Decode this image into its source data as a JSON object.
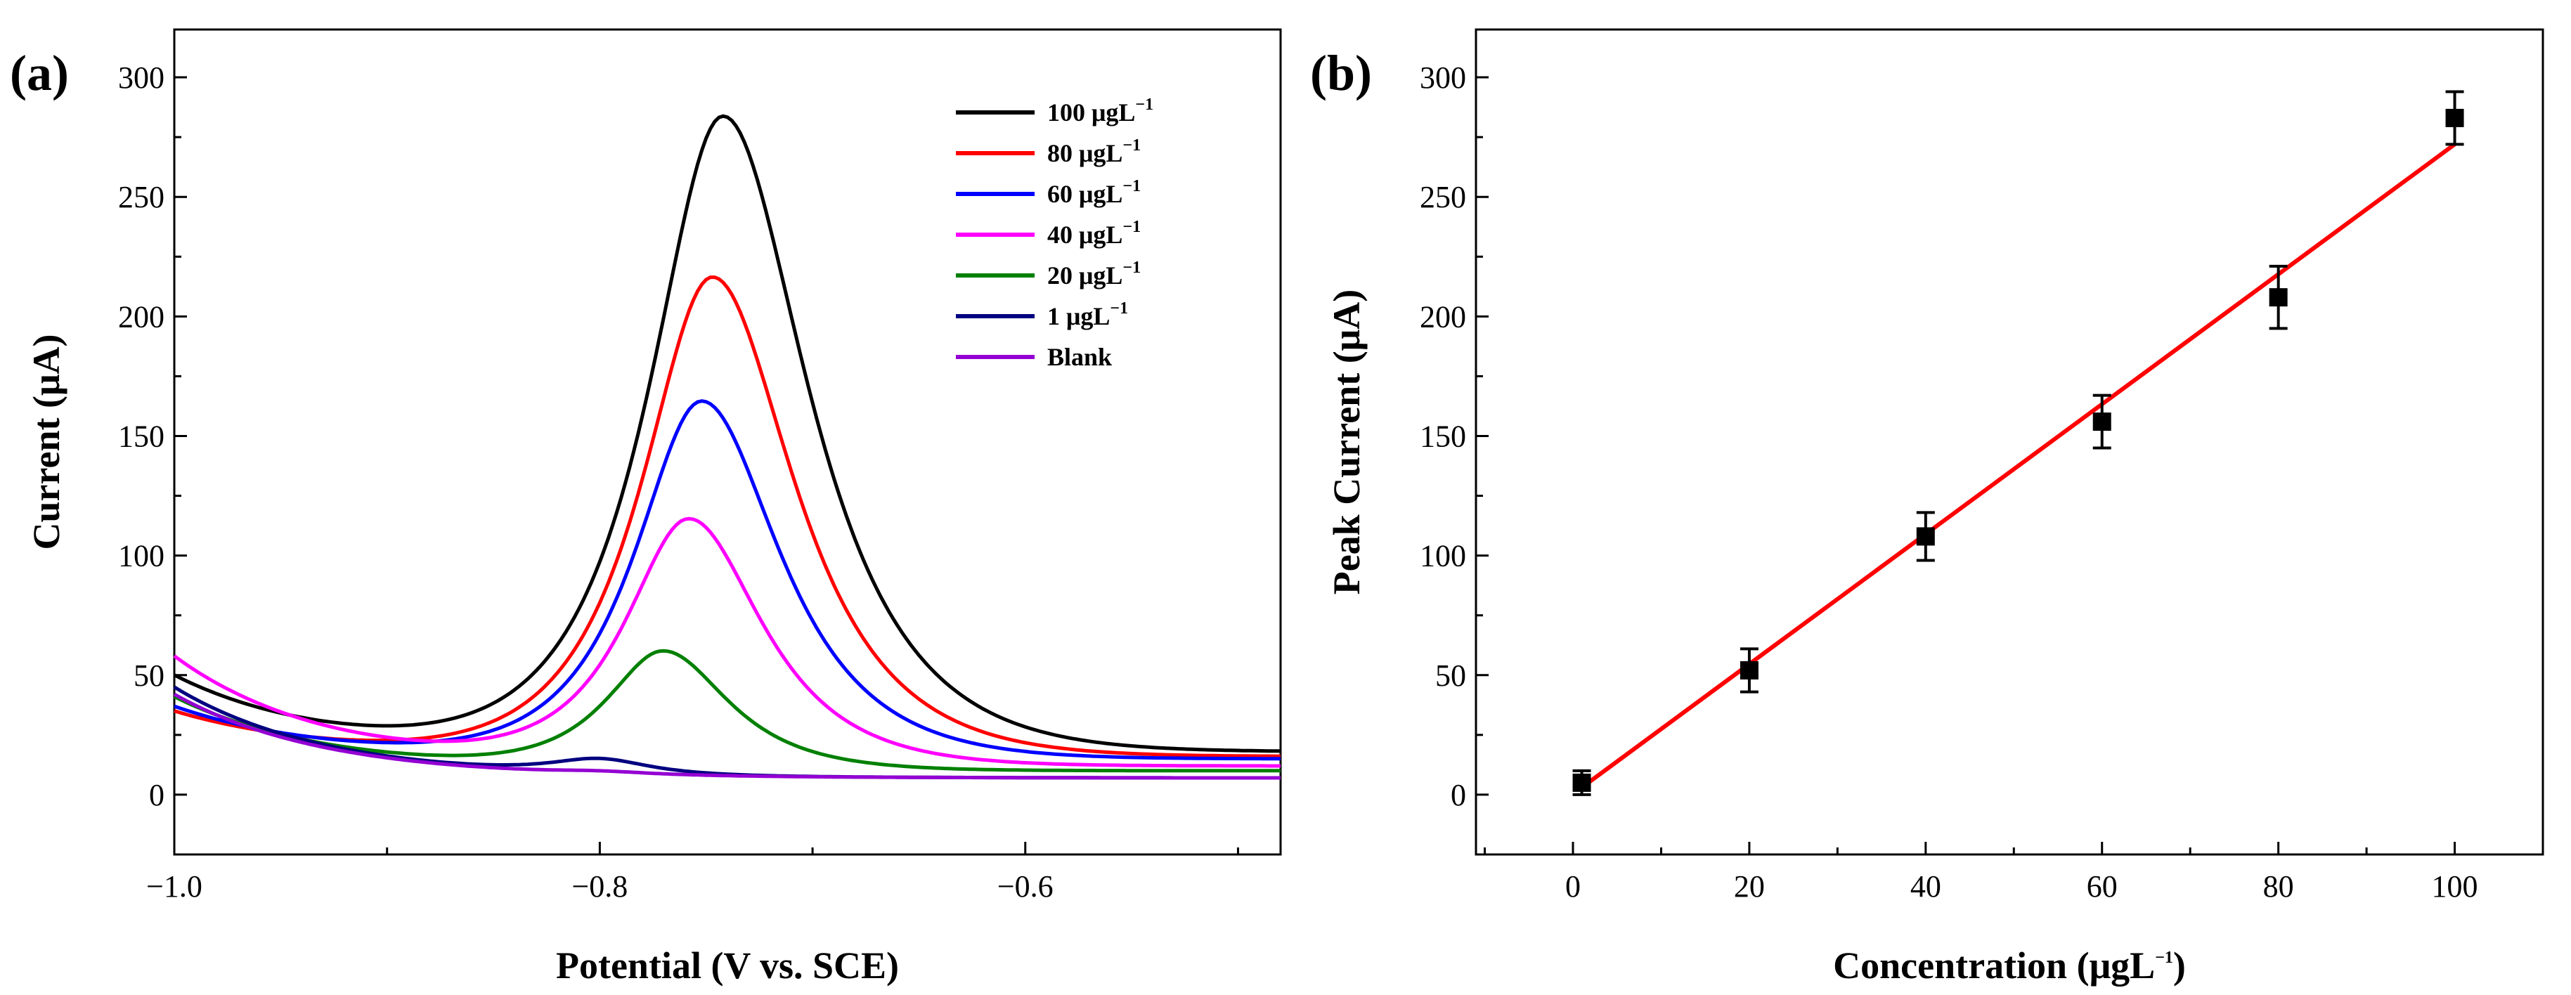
{
  "chart_data": [
    {
      "panel_label": "(a)",
      "type": "line",
      "xlabel": "Potential (V vs. SCE)",
      "ylabel": "Current (μA)",
      "xlim": [
        -1.0,
        -0.48
      ],
      "ylim": [
        -25,
        320
      ],
      "xticks": [
        -1.0,
        -0.8,
        -0.6
      ],
      "xtick_labels": [
        "−1.0",
        "−0.8",
        "−0.6"
      ],
      "yticks": [
        0,
        50,
        100,
        150,
        200,
        250,
        300
      ],
      "ytick_labels": [
        "0",
        "50",
        "100",
        "150",
        "200",
        "250",
        "300"
      ],
      "legend_position": "top-right",
      "series": [
        {
          "name": "100 μgL",
          "sup": "−1",
          "color": "#000000",
          "peak_x": -0.742,
          "peak_y": 283,
          "start_y": 50,
          "baseline_end": 18,
          "width_left": 0.045,
          "width_right": 0.052
        },
        {
          "name": " 80 μgL",
          "sup": "−1",
          "color": "#ff0000",
          "peak_x": -0.747,
          "peak_y": 216,
          "start_y": 35,
          "baseline_end": 16,
          "width_left": 0.043,
          "width_right": 0.05
        },
        {
          "name": " 60 μgL",
          "sup": "−1",
          "color": "#0000ff",
          "peak_x": -0.752,
          "peak_y": 164,
          "start_y": 37,
          "baseline_end": 15,
          "width_left": 0.041,
          "width_right": 0.048
        },
        {
          "name": " 40 μgL",
          "sup": "−1",
          "color": "#ff00ff",
          "peak_x": -0.758,
          "peak_y": 114,
          "start_y": 58,
          "baseline_end": 12,
          "width_left": 0.039,
          "width_right": 0.045
        },
        {
          "name": " 20 μgL",
          "sup": "−1",
          "color": "#008000",
          "peak_x": -0.77,
          "peak_y": 59,
          "start_y": 41,
          "baseline_end": 10,
          "width_left": 0.035,
          "width_right": 0.04
        },
        {
          "name": " 1  μgL",
          "sup": "−1",
          "color": "#000080",
          "peak_x": -0.8,
          "peak_y": 13,
          "start_y": 45,
          "baseline_end": 7,
          "width_left": 0.03,
          "width_right": 0.03
        },
        {
          "name": "  Blank",
          "sup": "",
          "color": "#9400d3",
          "peak_x": -0.8,
          "peak_y": 8,
          "start_y": 42,
          "baseline_end": 7,
          "width_left": 0.03,
          "width_right": 0.03
        }
      ]
    },
    {
      "panel_label": "(b)",
      "type": "scatter",
      "xlabel": "Concentration (μgL",
      "xlabel_sup": "−1",
      "xlabel_tail": ")",
      "ylabel": "Peak Current (μA)",
      "xlim": [
        -11,
        110
      ],
      "ylim": [
        -25,
        320
      ],
      "xticks": [
        0,
        20,
        40,
        60,
        80,
        100
      ],
      "xtick_labels": [
        "0",
        "20",
        "40",
        "60",
        "80",
        "100"
      ],
      "yticks": [
        0,
        50,
        100,
        150,
        200,
        250,
        300
      ],
      "ytick_labels": [
        "0",
        "50",
        "100",
        "150",
        "200",
        "250",
        "300"
      ],
      "points": {
        "x": [
          1,
          20,
          40,
          60,
          80,
          100
        ],
        "y": [
          5,
          52,
          108,
          156,
          208,
          283
        ],
        "err": [
          5,
          9,
          10,
          11,
          13,
          11
        ]
      },
      "fit_line": {
        "x": [
          1,
          100
        ],
        "y": [
          3,
          272
        ],
        "color": "#ff0000"
      },
      "marker_color": "#000000"
    }
  ]
}
